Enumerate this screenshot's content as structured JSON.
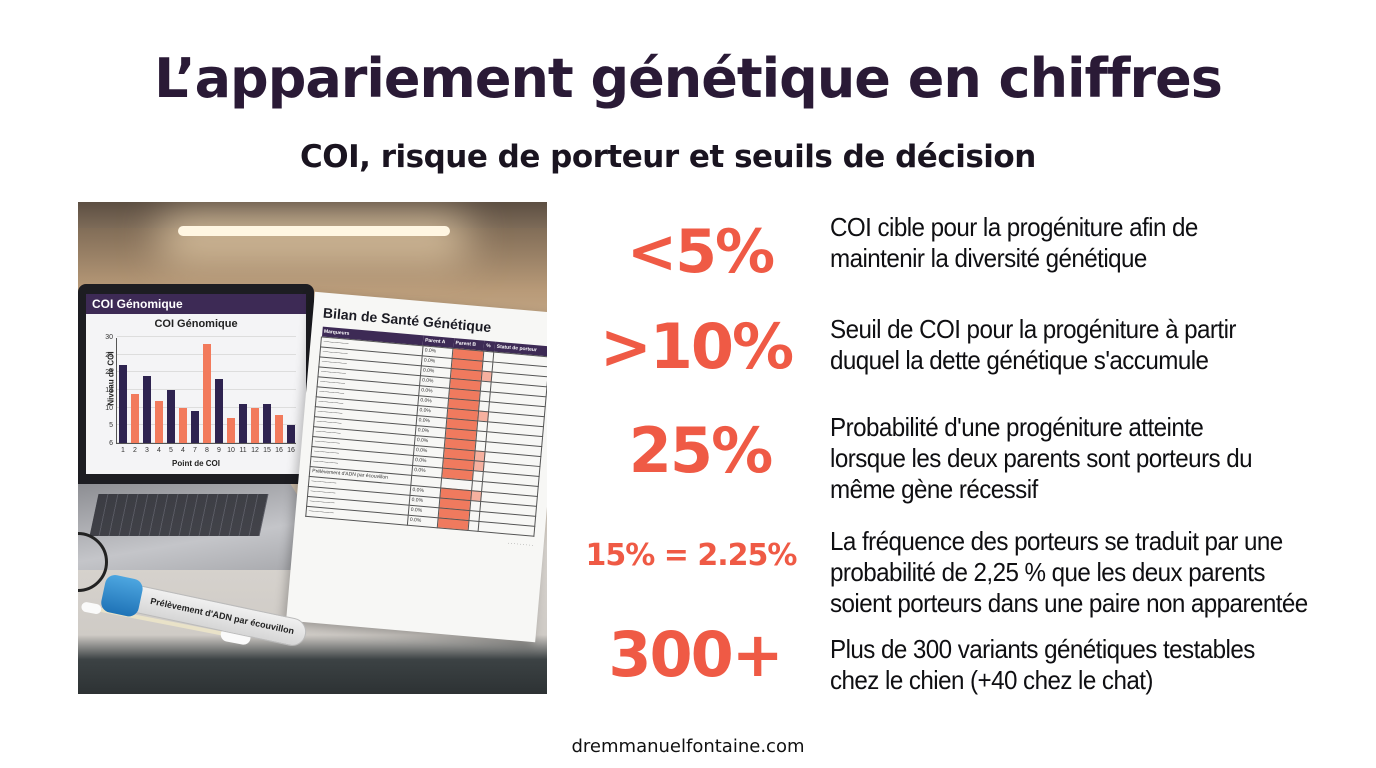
{
  "header": {
    "title": "L’appariement génétique en chiffres",
    "subtitle": "COI, risque de porteur et seuils de décision"
  },
  "photo": {
    "laptop": {
      "window_title": "COI Génomique",
      "chart_title": "COI Génomique",
      "ylabel": "Niveau de COI",
      "xlabel": "Point de COI"
    },
    "paper": {
      "title": "Bilan de Santé Génétique",
      "columns": [
        "Marqueurs",
        "Parent A",
        "Parent B",
        "%",
        "Statut de porteur"
      ],
      "section_label": "Prélèvement d'ADN par écouvillon",
      "row_count": 22
    },
    "tube_label": "Prélèvement d'ADN par écouvillon"
  },
  "stats": [
    {
      "value": "<5%",
      "description_lines": [
        "COI cible pour la progéniture afin de",
        "maintenir la diversité génétique"
      ]
    },
    {
      "value": ">10%",
      "description_lines": [
        "Seuil de COI pour la progéniture à partir",
        "duquel la dette génétique s'accumule"
      ]
    },
    {
      "value": "25%",
      "description_lines": [
        "Probabilité d'une progéniture atteinte",
        "lorsque les deux parents sont porteurs du",
        "même gène récessif"
      ]
    },
    {
      "value": "15% = 2.25%",
      "description_lines": [
        "La fréquence des porteurs se traduit par une",
        "probabilité de 2,25 % que les deux parents",
        "soient porteurs dans une paire non apparentée"
      ]
    },
    {
      "value": "300+",
      "description_lines": [
        "Plus de 300 variants génétiques testables",
        "chez le chien (+40 chez le chat)"
      ]
    }
  ],
  "colors": {
    "title": "#2a1a36",
    "accent": "#ef5a45",
    "bar_dark": "#2e2350",
    "bar_light": "#f27a5c",
    "laptop_header": "#3d2a55"
  },
  "footer": {
    "website": "dremmanuelfontaine.com"
  },
  "chart_data": {
    "type": "bar",
    "title": "COI Génomique",
    "xlabel": "Point de COI",
    "ylabel": "Niveau de COI",
    "categories": [
      "1",
      "2",
      "3",
      "4",
      "5",
      "4",
      "7",
      "8",
      "9",
      "10",
      "11",
      "12",
      "15",
      "16",
      "16"
    ],
    "values": [
      22,
      14,
      19,
      12,
      15,
      10,
      9,
      28,
      18,
      7,
      11,
      10,
      11,
      8,
      5
    ],
    "yticks": [
      6,
      5,
      10,
      15,
      20,
      25,
      30
    ],
    "ylim": [
      0,
      30
    ],
    "grid": true
  }
}
